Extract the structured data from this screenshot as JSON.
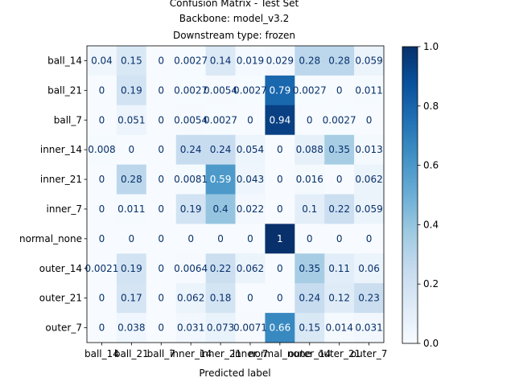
{
  "chart_data": {
    "type": "heatmap",
    "title_lines": [
      "Confusion Matrix - Test Set",
      "Backbone: model_v3.2",
      "Downstream type: frozen"
    ],
    "xlabel": "Predicted label",
    "ylabel": "",
    "labels": [
      "ball_14",
      "ball_21",
      "ball_7",
      "inner_14",
      "inner_21",
      "inner_7",
      "normal_none",
      "outer_14",
      "outer_21",
      "outer_7"
    ],
    "cell_text": [
      [
        "0.04",
        "0.15",
        "0",
        "0.0027",
        "0.14",
        "0.019",
        "0.029",
        "0.28",
        "0.28",
        "0.059"
      ],
      [
        "0",
        "0.19",
        "0",
        "0.0027",
        "0.0054",
        "0.0027",
        "0.79",
        "0.0027",
        "0",
        "0.011"
      ],
      [
        "0",
        "0.051",
        "0",
        "0.0054",
        "0.0027",
        "0",
        "0.94",
        "0",
        "0.0027",
        "0"
      ],
      [
        "0.008",
        "0",
        "0",
        "0.24",
        "0.24",
        "0.054",
        "0",
        "0.088",
        "0.35",
        "0.013"
      ],
      [
        "0",
        "0.28",
        "0",
        "0.0081",
        "0.59",
        "0.043",
        "0",
        "0.016",
        "0",
        "0.062"
      ],
      [
        "0",
        "0.011",
        "0",
        "0.19",
        "0.4",
        "0.022",
        "0",
        "0.1",
        "0.22",
        "0.059"
      ],
      [
        "0",
        "0",
        "0",
        "0",
        "0",
        "0",
        "1",
        "0",
        "0",
        "0"
      ],
      [
        "0.0021",
        "0.19",
        "0",
        "0.0064",
        "0.22",
        "0.062",
        "0",
        "0.35",
        "0.11",
        "0.06"
      ],
      [
        "0",
        "0.17",
        "0",
        "0.062",
        "0.18",
        "0",
        "0",
        "0.24",
        "0.12",
        "0.23"
      ],
      [
        "0",
        "0.038",
        "0",
        "0.031",
        "0.073",
        "0.0071",
        "0.66",
        "0.15",
        "0.014",
        "0.031"
      ]
    ],
    "colorbar": {
      "range": [
        0,
        1
      ],
      "ticks": [
        "0.0",
        "0.2",
        "0.4",
        "0.6",
        "0.8",
        "1.0"
      ],
      "colormap": "Blues"
    },
    "grid": false,
    "legend": "none"
  }
}
